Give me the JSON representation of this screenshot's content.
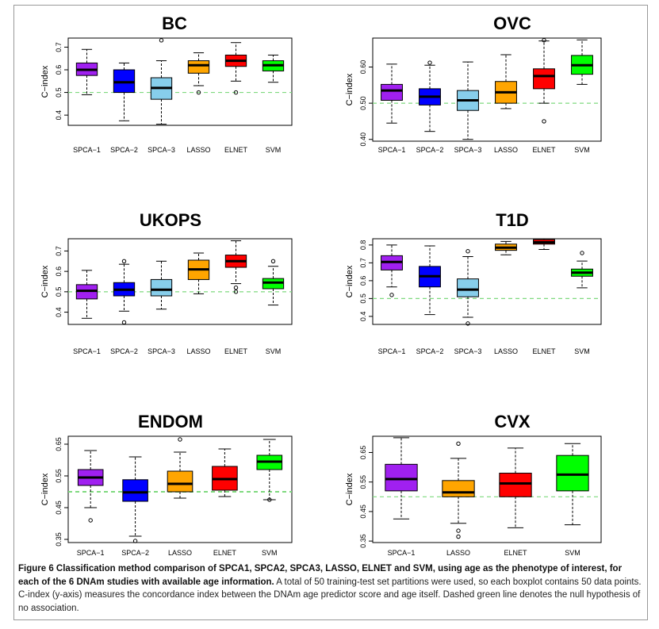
{
  "caption": {
    "bold": "Figure 6 Classification method comparison of SPCA1, SPCA2, SPCA3, LASSO, ELNET and SVM, using age as the phenotype of interest, for each of the 6 DNAm studies with available age information.",
    "rest": " A total of 50 training-test set partitions were used, so each boxplot contains 50 data points. C-index (y-axis) measures the concordance index between the DNAm age predictor score and age itself. Dashed green line denotes the null hypothesis of no association."
  },
  "chart_data": [
    {
      "type": "box",
      "title": "BC",
      "ylabel": "C−index",
      "ylim": [
        0.355,
        0.74
      ],
      "yticks": [
        "0.4",
        "0.5",
        "0.6",
        "0.7"
      ],
      "null_line": 0.5,
      "series": [
        {
          "name": "SPCA−1",
          "color": "#a020f0",
          "whisker_low": 0.49,
          "q1": 0.575,
          "median": 0.6,
          "q3": 0.63,
          "whisker_high": 0.69,
          "outliers": []
        },
        {
          "name": "SPCA−2",
          "color": "#0000ff",
          "whisker_low": 0.375,
          "q1": 0.5,
          "median": 0.545,
          "q3": 0.6,
          "whisker_high": 0.63,
          "outliers": []
        },
        {
          "name": "SPCA−3",
          "color": "#87ceeb",
          "whisker_low": 0.36,
          "q1": 0.47,
          "median": 0.52,
          "q3": 0.565,
          "whisker_high": 0.64,
          "outliers": [
            0.73
          ]
        },
        {
          "name": "LASSO",
          "color": "#ffa500",
          "whisker_low": 0.53,
          "q1": 0.585,
          "median": 0.62,
          "q3": 0.64,
          "whisker_high": 0.675,
          "outliers": [
            0.5
          ]
        },
        {
          "name": "ELNET",
          "color": "#ff0000",
          "whisker_low": 0.55,
          "q1": 0.615,
          "median": 0.64,
          "q3": 0.665,
          "whisker_high": 0.72,
          "outliers": [
            0.5
          ]
        },
        {
          "name": "SVM",
          "color": "#00ff00",
          "whisker_low": 0.545,
          "q1": 0.595,
          "median": 0.62,
          "q3": 0.64,
          "whisker_high": 0.665,
          "outliers": []
        }
      ]
    },
    {
      "type": "box",
      "title": "OVC",
      "ylabel": "C−index",
      "ylim": [
        0.395,
        0.68
      ],
      "yticks": [
        "0.40",
        "0.50",
        "0.60"
      ],
      "null_line": 0.5,
      "series": [
        {
          "name": "SPCA−1",
          "color": "#a020f0",
          "whisker_low": 0.445,
          "q1": 0.508,
          "median": 0.535,
          "q3": 0.552,
          "whisker_high": 0.608,
          "outliers": []
        },
        {
          "name": "SPCA−2",
          "color": "#0000ff",
          "whisker_low": 0.422,
          "q1": 0.495,
          "median": 0.518,
          "q3": 0.54,
          "whisker_high": 0.605,
          "outliers": [
            0.612
          ]
        },
        {
          "name": "SPCA−3",
          "color": "#87ceeb",
          "whisker_low": 0.4,
          "q1": 0.48,
          "median": 0.508,
          "q3": 0.535,
          "whisker_high": 0.614,
          "outliers": []
        },
        {
          "name": "LASSO",
          "color": "#ffa500",
          "whisker_low": 0.485,
          "q1": 0.5,
          "median": 0.53,
          "q3": 0.56,
          "whisker_high": 0.634,
          "outliers": []
        },
        {
          "name": "ELNET",
          "color": "#ff0000",
          "whisker_low": 0.5,
          "q1": 0.54,
          "median": 0.575,
          "q3": 0.595,
          "whisker_high": 0.672,
          "outliers": [
            0.45,
            0.674
          ]
        },
        {
          "name": "SVM",
          "color": "#00ff00",
          "whisker_low": 0.552,
          "q1": 0.58,
          "median": 0.605,
          "q3": 0.632,
          "whisker_high": 0.675,
          "outliers": []
        }
      ]
    },
    {
      "type": "box",
      "title": "UKOPS",
      "ylabel": "C−index",
      "ylim": [
        0.34,
        0.76
      ],
      "yticks": [
        "0.4",
        "0.5",
        "0.6",
        "0.7"
      ],
      "null_line": 0.5,
      "series": [
        {
          "name": "SPCA−1",
          "color": "#a020f0",
          "whisker_low": 0.37,
          "q1": 0.465,
          "median": 0.505,
          "q3": 0.535,
          "whisker_high": 0.605,
          "outliers": []
        },
        {
          "name": "SPCA−2",
          "color": "#0000ff",
          "whisker_low": 0.405,
          "q1": 0.48,
          "median": 0.51,
          "q3": 0.545,
          "whisker_high": 0.635,
          "outliers": [
            0.65,
            0.35
          ]
        },
        {
          "name": "SPCA−3",
          "color": "#87ceeb",
          "whisker_low": 0.415,
          "q1": 0.48,
          "median": 0.51,
          "q3": 0.56,
          "whisker_high": 0.65,
          "outliers": []
        },
        {
          "name": "LASSO",
          "color": "#ffa500",
          "whisker_low": 0.49,
          "q1": 0.56,
          "median": 0.61,
          "q3": 0.655,
          "whisker_high": 0.69,
          "outliers": []
        },
        {
          "name": "ELNET",
          "color": "#ff0000",
          "whisker_low": 0.54,
          "q1": 0.62,
          "median": 0.65,
          "q3": 0.68,
          "whisker_high": 0.75,
          "outliers": [
            0.52,
            0.5
          ]
        },
        {
          "name": "SVM",
          "color": "#00ff00",
          "whisker_low": 0.435,
          "q1": 0.515,
          "median": 0.545,
          "q3": 0.565,
          "whisker_high": 0.625,
          "outliers": [
            0.65
          ]
        }
      ]
    },
    {
      "type": "box",
      "title": "T1D",
      "ylabel": "C−index",
      "ylim": [
        0.355,
        0.835
      ],
      "yticks": [
        "0.4",
        "0.5",
        "0.6",
        "0.7",
        "0.8"
      ],
      "null_line": 0.5,
      "series": [
        {
          "name": "SPCA−1",
          "color": "#a020f0",
          "whisker_low": 0.565,
          "q1": 0.66,
          "median": 0.705,
          "q3": 0.74,
          "whisker_high": 0.8,
          "outliers": [
            0.52
          ]
        },
        {
          "name": "SPCA−2",
          "color": "#0000ff",
          "whisker_low": 0.41,
          "q1": 0.565,
          "median": 0.625,
          "q3": 0.68,
          "whisker_high": 0.795,
          "outliers": []
        },
        {
          "name": "SPCA−3",
          "color": "#87ceeb",
          "whisker_low": 0.395,
          "q1": 0.51,
          "median": 0.55,
          "q3": 0.61,
          "whisker_high": 0.735,
          "outliers": [
            0.765,
            0.36
          ]
        },
        {
          "name": "LASSO",
          "color": "#ffa500",
          "whisker_low": 0.745,
          "q1": 0.77,
          "median": 0.785,
          "q3": 0.805,
          "whisker_high": 0.82,
          "outliers": []
        },
        {
          "name": "ELNET",
          "color": "#ff0000",
          "whisker_low": 0.775,
          "q1": 0.805,
          "median": 0.815,
          "q3": 0.83,
          "whisker_high": 0.835,
          "outliers": []
        },
        {
          "name": "SVM",
          "color": "#00ff00",
          "whisker_low": 0.56,
          "q1": 0.625,
          "median": 0.645,
          "q3": 0.665,
          "whisker_high": 0.71,
          "outliers": [
            0.755
          ]
        }
      ]
    },
    {
      "type": "box",
      "title": "ENDOM",
      "ylabel": "C−index",
      "ylim": [
        0.34,
        0.675
      ],
      "yticks": [
        "0.35",
        "0.45",
        "0.55",
        "0.65"
      ],
      "null_line": 0.5,
      "series": [
        {
          "name": "SPCA−1",
          "color": "#a020f0",
          "whisker_low": 0.45,
          "q1": 0.52,
          "median": 0.545,
          "q3": 0.57,
          "whisker_high": 0.63,
          "outliers": [
            0.41
          ]
        },
        {
          "name": "SPCA−2",
          "color": "#0000ff",
          "whisker_low": 0.36,
          "q1": 0.47,
          "median": 0.498,
          "q3": 0.538,
          "whisker_high": 0.61,
          "outliers": [
            0.345
          ]
        },
        {
          "name": "LASSO",
          "color": "#ffa500",
          "whisker_low": 0.48,
          "q1": 0.5,
          "median": 0.525,
          "q3": 0.565,
          "whisker_high": 0.625,
          "outliers": [
            0.665
          ]
        },
        {
          "name": "ELNET",
          "color": "#ff0000",
          "whisker_low": 0.485,
          "q1": 0.505,
          "median": 0.54,
          "q3": 0.58,
          "whisker_high": 0.635,
          "outliers": []
        },
        {
          "name": "SVM",
          "color": "#00ff00",
          "whisker_low": 0.475,
          "q1": 0.57,
          "median": 0.595,
          "q3": 0.615,
          "whisker_high": 0.665,
          "outliers": [
            0.475
          ]
        }
      ]
    },
    {
      "type": "box",
      "title": "CVX",
      "ylabel": "C−index",
      "ylim": [
        0.345,
        0.705
      ],
      "yticks": [
        "0.35",
        "0.45",
        "0.55",
        "0.65"
      ],
      "null_line": 0.5,
      "series": [
        {
          "name": "SPCA−1",
          "color": "#a020f0",
          "whisker_low": 0.425,
          "q1": 0.52,
          "median": 0.56,
          "q3": 0.61,
          "whisker_high": 0.7,
          "outliers": []
        },
        {
          "name": "LASSO",
          "color": "#ffa500",
          "whisker_low": 0.41,
          "q1": 0.5,
          "median": 0.515,
          "q3": 0.555,
          "whisker_high": 0.63,
          "outliers": [
            0.68,
            0.385,
            0.365
          ]
        },
        {
          "name": "ELNET",
          "color": "#ff0000",
          "whisker_low": 0.395,
          "q1": 0.5,
          "median": 0.545,
          "q3": 0.58,
          "whisker_high": 0.665,
          "outliers": []
        },
        {
          "name": "SVM",
          "color": "#00ff00",
          "whisker_low": 0.405,
          "q1": 0.52,
          "median": 0.575,
          "q3": 0.64,
          "whisker_high": 0.68,
          "outliers": []
        }
      ]
    }
  ]
}
